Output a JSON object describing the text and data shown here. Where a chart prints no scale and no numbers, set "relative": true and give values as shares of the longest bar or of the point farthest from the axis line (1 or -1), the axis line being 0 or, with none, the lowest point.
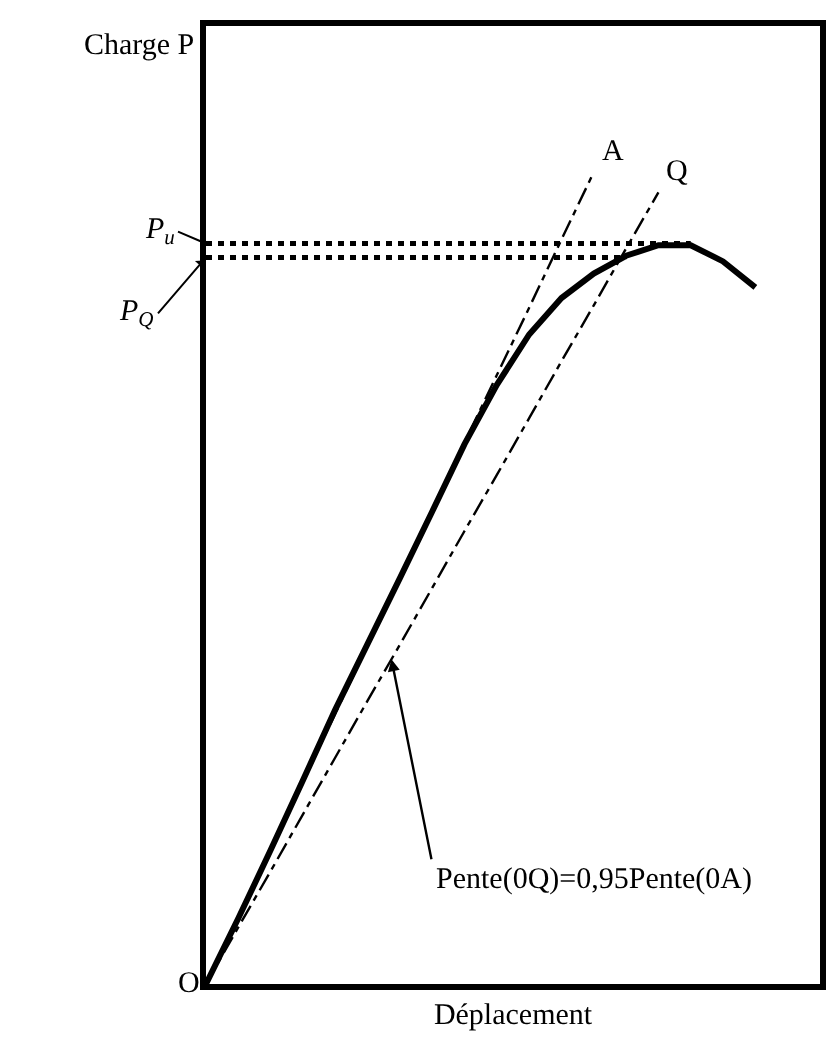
{
  "chart_data": {
    "type": "line",
    "relative": true,
    "xlabel": "Déplacement",
    "ylabel": "Charge P",
    "categories": [
      null,
      null,
      null,
      null,
      null,
      null,
      null,
      null,
      null,
      null,
      null,
      null,
      null,
      null,
      null,
      null,
      null,
      null,
      null,
      null
    ],
    "series": [
      {
        "color": "#000000",
        "line_style": "solid",
        "values": [
          0,
          0.081,
          0.165,
          0.251,
          0.338,
          0.419,
          0.5,
          0.582,
          0.665,
          0.738,
          0.8,
          0.845,
          0.875,
          0.897,
          0.91,
          0.91,
          0.89,
          0.858,
          null,
          null
        ]
      },
      {
        "name": "A",
        "color": "#000000",
        "line_style": "dashdot",
        "values": [
          0,
          0.083,
          0.167,
          0.25,
          0.333,
          0.417,
          0.5,
          0.583,
          0.667,
          0.75,
          0.833,
          0.917,
          1,
          null,
          null,
          null,
          null,
          null,
          null,
          null
        ]
      },
      {
        "name": "Q",
        "color": "#000000",
        "line_style": "dashdot",
        "values": [
          0,
          0.07,
          0.139,
          0.209,
          0.279,
          0.349,
          0.418,
          0.488,
          0.558,
          0.627,
          0.697,
          0.767,
          0.836,
          0.906,
          0.975,
          null,
          null,
          null,
          null,
          null
        ]
      },
      {
        "name": "P$_{u}$",
        "color": "#000000",
        "line_style": "dotted",
        "values": [
          0.912,
          0.912,
          0.912,
          0.912,
          0.912,
          0.912,
          0.912,
          0.912,
          0.912,
          0.912,
          0.912,
          0.912,
          0.912,
          0.912,
          0.912,
          0.912,
          null,
          null,
          null,
          null
        ]
      },
      {
        "name": "P$_{Q}$",
        "color": "#000000",
        "line_style": "dotted",
        "values": [
          0.895,
          0.895,
          0.895,
          0.895,
          0.895,
          0.895,
          0.895,
          0.895,
          0.895,
          0.895,
          0.895,
          0.895,
          0.895,
          0.895,
          null,
          null,
          null,
          null,
          null,
          null
        ]
      }
    ],
    "annotations": [
      "O",
      "Pente(0Q)=0,95Pente(0A)"
    ],
    "tick_labels": false
  }
}
